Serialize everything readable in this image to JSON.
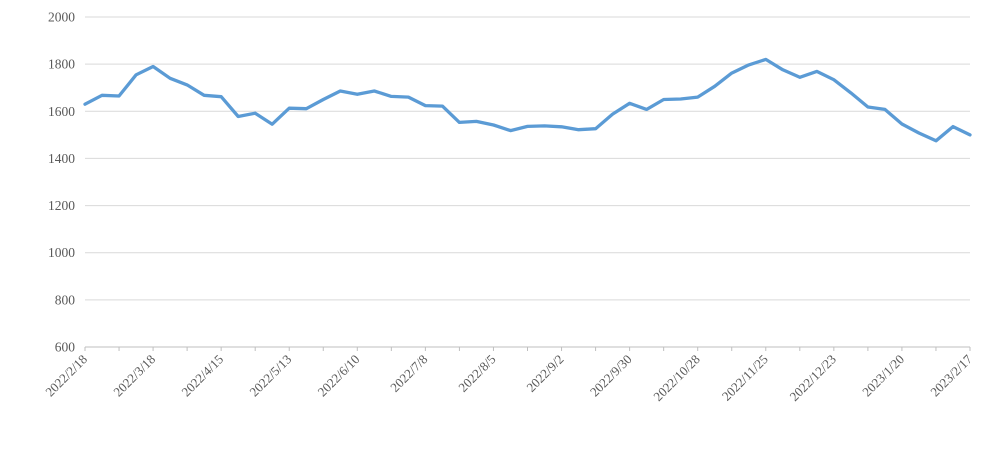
{
  "chart_data": {
    "type": "line",
    "title": "",
    "xlabel": "",
    "ylabel": "",
    "legend": "none",
    "grid": "horizontal",
    "ylim": [
      600,
      2000
    ],
    "yticks": [
      600,
      800,
      1000,
      1200,
      1400,
      1600,
      1800,
      2000
    ],
    "x_is_weekly_dates": true,
    "xtick_labels": [
      "2022/2/18",
      "2022/3/18",
      "2022/4/15",
      "2022/5/13",
      "2022/6/10",
      "2022/7/8",
      "2022/8/5",
      "2022/9/2",
      "2022/9/30",
      "2022/10/28",
      "2022/11/25",
      "2022/12/23",
      "2023/1/20",
      "2023/2/17"
    ],
    "xtick_label_every_n_points": 4,
    "axis_tick_every_n_points": 2,
    "values": [
      1630,
      1668,
      1665,
      1755,
      1790,
      1740,
      1712,
      1668,
      1662,
      1578,
      1592,
      1545,
      1613,
      1611,
      1650,
      1686,
      1672,
      1686,
      1663,
      1660,
      1624,
      1622,
      1553,
      1557,
      1542,
      1518,
      1536,
      1538,
      1534,
      1522,
      1526,
      1588,
      1634,
      1608,
      1650,
      1652,
      1660,
      1706,
      1762,
      1797,
      1820,
      1776,
      1744,
      1769,
      1734,
      1678,
      1618,
      1608,
      1546,
      1508,
      1475,
      1535,
      1500
    ],
    "colors": {
      "series_line": "#5B9BD5",
      "gridline": "#D9D9D9",
      "axis_line": "#BFBFBF",
      "tick_mark": "#BFBFBF",
      "axis_label_text": "#595959",
      "background": "#FFFFFF"
    },
    "line_width": 3.3,
    "xtick_label_rotation_deg": -45
  }
}
